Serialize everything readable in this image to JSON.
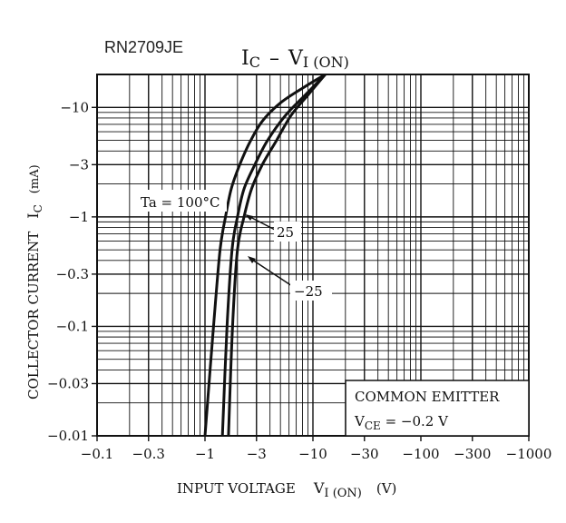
{
  "part_number": "RN2709JE",
  "chart_data": {
    "type": "line",
    "title": {
      "main": "I",
      "main_sub": "C",
      "dash": "–",
      "right": "V",
      "right_sub": "I (ON)"
    },
    "xlabel": {
      "main": "INPUT VOLTAGE",
      "sym": "V",
      "sub": "I (ON)",
      "unit": "(V)"
    },
    "ylabel": {
      "main": "COLLECTOR CURRENT",
      "sym": "I",
      "sub": "C",
      "unit": "(mA)"
    },
    "x_scale": "log",
    "y_scale": "log",
    "xlim": [
      0.1,
      1000
    ],
    "ylim": [
      0.01,
      20
    ],
    "x_magnitude_note": "values plotted as magnitudes; axis labels are negative",
    "x_ticks": [
      {
        "value": 0.1,
        "label": "−0.1"
      },
      {
        "value": 0.3,
        "label": "−0.3"
      },
      {
        "value": 1,
        "label": "−1"
      },
      {
        "value": 3,
        "label": "−3"
      },
      {
        "value": 10,
        "label": "−10"
      },
      {
        "value": 30,
        "label": "−30"
      },
      {
        "value": 100,
        "label": "−100"
      },
      {
        "value": 300,
        "label": "−300"
      },
      {
        "value": 1000,
        "label": "−1000"
      }
    ],
    "y_ticks": [
      {
        "value": 10,
        "label": "−10"
      },
      {
        "value": 3,
        "label": "−3"
      },
      {
        "value": 1,
        "label": "−1"
      },
      {
        "value": 0.3,
        "label": "−0.3"
      },
      {
        "value": 0.1,
        "label": "−0.1"
      },
      {
        "value": 0.03,
        "label": "−0.03"
      },
      {
        "value": 0.01,
        "label": "−0.01"
      }
    ],
    "series": [
      {
        "name": "Ta=100°C",
        "x": [
          1.0,
          1.2,
          1.38,
          1.55,
          1.75,
          2.1,
          2.6,
          3.4,
          5.0,
          8.0,
          13.0
        ],
        "y": [
          0.01,
          0.1,
          0.5,
          1.0,
          1.8,
          3.0,
          4.8,
          7.5,
          11.0,
          15.0,
          20.0
        ]
      },
      {
        "name": "25",
        "x": [
          1.45,
          1.6,
          1.78,
          2.0,
          2.3,
          2.9,
          3.8,
          5.6,
          8.5,
          13.0
        ],
        "y": [
          0.01,
          0.1,
          0.5,
          1.0,
          1.8,
          3.0,
          5.0,
          8.5,
          13.0,
          20.0
        ]
      },
      {
        "name": "−25",
        "x": [
          1.65,
          1.8,
          2.0,
          2.3,
          2.7,
          3.4,
          4.6,
          6.3,
          9.0,
          13.0
        ],
        "y": [
          0.01,
          0.1,
          0.5,
          1.0,
          1.8,
          3.0,
          5.0,
          8.5,
          13.0,
          20.0
        ]
      }
    ],
    "legend_box": [
      "COMMON EMITTER",
      "V",
      "CE",
      " = −0.2 V"
    ],
    "annotations": {
      "ta_label": "Ta = 100°C",
      "label_25": "25",
      "label_m25": "−25"
    }
  }
}
